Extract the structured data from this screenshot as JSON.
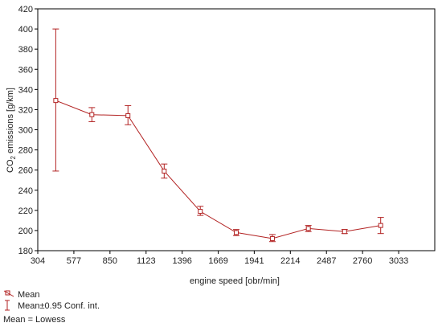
{
  "chart_data": {
    "type": "line",
    "title": "",
    "xlabel": "engine speed [obr/min]",
    "ylabel": {
      "pre": "CO",
      "sub": "2",
      "post": " emissions [g/km]"
    },
    "x_ticks": [
      304,
      577,
      850,
      1123,
      1396,
      1669,
      1941,
      2214,
      2487,
      2760,
      3033
    ],
    "y_ticks": [
      180,
      200,
      220,
      240,
      260,
      280,
      300,
      320,
      340,
      360,
      380,
      400,
      420
    ],
    "xlim": [
      304,
      3306
    ],
    "ylim": [
      180,
      420
    ],
    "grid": false,
    "series": [
      {
        "x": [
          440,
          713,
          986,
          1260,
          1533,
          1805,
          2078,
          2350,
          2624,
          2897
        ],
        "mean": [
          329,
          315,
          314,
          259,
          219,
          198,
          192,
          202,
          199,
          205
        ],
        "lower": [
          259,
          308,
          305,
          252,
          215,
          195,
          189,
          199,
          197,
          197
        ],
        "upper": [
          400,
          322,
          324,
          266,
          224,
          201,
          196,
          205,
          201,
          213
        ]
      }
    ],
    "legend": {
      "position": "bottom-left",
      "mean_label": "Mean",
      "ci_label": "Mean±0.95 Conf. int.",
      "fit_label": "Mean = Lowess"
    },
    "color": "#b22222"
  }
}
